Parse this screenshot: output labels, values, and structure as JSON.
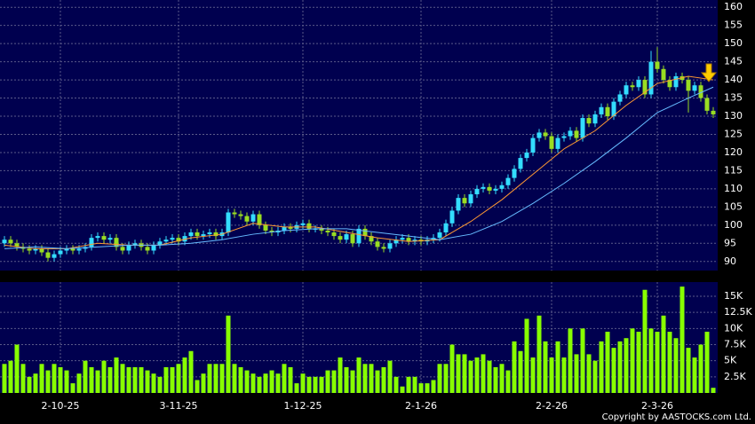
{
  "chart_data": [
    {
      "type": "candlestick",
      "up_color": "#33ddff",
      "down_color": "#99dd22",
      "grid": true,
      "ylim": [
        87.5,
        162
      ],
      "yticks": [
        90,
        95,
        100,
        105,
        110,
        115,
        120,
        125,
        130,
        135,
        140,
        145,
        150,
        155,
        160
      ],
      "open": [
        95,
        96,
        95,
        94,
        93.5,
        93,
        93.5,
        92.5,
        91,
        92,
        93,
        93.5,
        93,
        93.5,
        94,
        96.5,
        97,
        96,
        96.5,
        94,
        93,
        94.5,
        95,
        94,
        93,
        94.5,
        95.5,
        96,
        96.5,
        95.5,
        97,
        98,
        97,
        97.5,
        98,
        97,
        98,
        103.5,
        103,
        102.5,
        101,
        103,
        100,
        98.5,
        98,
        98.5,
        99.5,
        99,
        100,
        100.5,
        99,
        99,
        98.5,
        98,
        97,
        96,
        97.5,
        95,
        99,
        97,
        95.5,
        94,
        93.5,
        95,
        96,
        96.5,
        95.5,
        96,
        95.5,
        96,
        96.5,
        98,
        100.5,
        104,
        107.5,
        106,
        108.5,
        110,
        110.5,
        109.5,
        110,
        111,
        113,
        115.5,
        118.5,
        120,
        124,
        125.5,
        124.5,
        121,
        124,
        124.5,
        126,
        124,
        129.5,
        128,
        130.5,
        132.5,
        130,
        134,
        136,
        138.5,
        138,
        140,
        136,
        145,
        143,
        140,
        138,
        141,
        140,
        137,
        138.5,
        135,
        131.5
      ],
      "high": [
        97,
        97,
        96,
        95,
        94.5,
        94.5,
        94.5,
        93.5,
        93,
        94,
        94.5,
        94.5,
        94.5,
        95,
        97.5,
        98,
        98,
        97.5,
        97.5,
        95,
        95.5,
        96,
        96,
        95,
        95.5,
        96.5,
        97,
        97.5,
        97.5,
        98,
        99,
        99,
        98.5,
        99,
        99,
        99,
        104.5,
        104.5,
        104,
        103.5,
        104,
        104,
        101,
        99.5,
        99.5,
        100.5,
        100.5,
        101,
        101.5,
        101.5,
        100,
        100,
        99.5,
        99,
        98,
        98.5,
        98.5,
        100,
        100,
        98,
        96.5,
        95,
        96,
        97,
        97.5,
        97.5,
        97,
        97,
        97,
        97.5,
        99,
        101.5,
        105,
        108.5,
        108.5,
        109.5,
        111,
        111.5,
        111.5,
        111,
        112,
        114,
        116.5,
        119.5,
        121,
        125,
        126.5,
        126.5,
        125.5,
        125,
        125.5,
        127,
        127,
        130.5,
        130.5,
        131.5,
        133.5,
        133.5,
        135,
        137,
        139.5,
        139.5,
        141,
        141,
        148,
        149,
        144,
        141,
        142,
        142,
        141,
        139.5,
        139.5,
        136,
        132.5
      ],
      "low": [
        94,
        94,
        93,
        92.5,
        92,
        92,
        91.5,
        90,
        90,
        91,
        92,
        92,
        92,
        92.5,
        93,
        95.5,
        95,
        95,
        93,
        92,
        92,
        93.5,
        93,
        92,
        92,
        93.5,
        94.5,
        95,
        94.5,
        94.5,
        96,
        96,
        96,
        96.5,
        96,
        96,
        97,
        102,
        101.5,
        100,
        100,
        99,
        97.5,
        97,
        97,
        97.5,
        98,
        98,
        99,
        98,
        98,
        97.5,
        97,
        96,
        95,
        95,
        94,
        94,
        96,
        94.5,
        93,
        92.5,
        92.5,
        94,
        95,
        94.5,
        94.5,
        94.5,
        94.5,
        95,
        95.5,
        97,
        99.5,
        103,
        105,
        105,
        107.5,
        109,
        108.5,
        108.5,
        109,
        110,
        112,
        114.5,
        117.5,
        119,
        123,
        123.5,
        120,
        120,
        123,
        123.5,
        123,
        123,
        127,
        127,
        129.5,
        129,
        129,
        133,
        135,
        137,
        137,
        135,
        135,
        142,
        139,
        137,
        137,
        139,
        131,
        136,
        134,
        130.5,
        129.5
      ],
      "close": [
        96,
        95,
        94,
        93.5,
        93,
        93.5,
        92.5,
        91,
        92,
        93,
        93.5,
        93,
        93.5,
        94,
        96.5,
        97,
        96,
        96.5,
        94,
        93,
        94.5,
        95,
        94,
        93,
        94.5,
        95.5,
        96,
        96.5,
        95.5,
        97,
        98,
        97,
        97.5,
        98,
        97,
        98,
        103.5,
        103,
        102.5,
        101,
        103,
        100,
        98.5,
        98,
        98.5,
        99.5,
        99,
        100,
        100.5,
        99,
        99,
        98.5,
        98,
        97,
        96,
        97.5,
        95,
        99,
        97,
        95.5,
        94,
        93.5,
        95,
        96,
        96.5,
        95.5,
        96,
        95.5,
        96,
        96.5,
        98,
        100.5,
        104,
        107.5,
        106,
        108.5,
        110,
        110.5,
        109.5,
        110,
        111,
        113,
        115.5,
        118.5,
        120,
        124,
        125.5,
        124.5,
        121,
        124,
        124.5,
        126,
        124,
        129.5,
        128,
        130.5,
        132.5,
        130,
        134,
        136,
        138.5,
        138,
        140,
        136,
        145,
        143,
        140,
        138,
        141,
        140,
        137,
        138.5,
        135,
        131.5,
        130.5
      ],
      "lines": [
        {
          "color": "#ff9933",
          "x": [
            0,
            5,
            10,
            15,
            20,
            25,
            30,
            35,
            40,
            45,
            50,
            55,
            60,
            65,
            70,
            75,
            80,
            85,
            90,
            95,
            100,
            105,
            110,
            114
          ],
          "values": [
            94.5,
            93.5,
            93.5,
            95,
            94.5,
            94.5,
            96.5,
            97.5,
            100.5,
            99.5,
            99.5,
            98,
            96.5,
            95.5,
            96,
            101,
            107,
            114,
            121,
            126,
            133,
            139,
            141,
            140
          ]
        },
        {
          "color": "#66bbff",
          "x": [
            0,
            5,
            10,
            15,
            20,
            25,
            30,
            35,
            40,
            45,
            50,
            55,
            60,
            65,
            70,
            75,
            80,
            85,
            90,
            95,
            100,
            105,
            110,
            114
          ],
          "values": [
            93.5,
            94,
            93.5,
            94,
            94.5,
            94.5,
            95,
            96,
            97.5,
            98.5,
            99,
            99,
            98,
            97,
            96,
            97.5,
            101,
            106,
            111.5,
            117.5,
            124,
            131,
            135,
            138
          ]
        }
      ]
    },
    {
      "type": "bar",
      "color": "#88ff00",
      "grid": true,
      "ylim": [
        0,
        17200
      ],
      "yticks": [
        {
          "value": 2500,
          "label": "2.5K"
        },
        {
          "value": 5000,
          "label": "5K"
        },
        {
          "value": 7500,
          "label": "7.5K"
        },
        {
          "value": 10000,
          "label": "10K"
        },
        {
          "value": 12500,
          "label": "12.5K"
        },
        {
          "value": 15000,
          "label": "15K"
        }
      ],
      "categories": [
        null,
        null,
        null,
        null,
        null,
        null,
        null,
        null,
        null,
        "2-10-25",
        null,
        null,
        null,
        null,
        null,
        null,
        null,
        null,
        null,
        null,
        null,
        null,
        null,
        null,
        null,
        null,
        null,
        null,
        "3-11-25",
        null,
        null,
        null,
        null,
        null,
        null,
        null,
        null,
        null,
        null,
        null,
        null,
        null,
        null,
        null,
        null,
        null,
        null,
        null,
        "1-12-25",
        null,
        null,
        null,
        null,
        null,
        null,
        null,
        null,
        null,
        null,
        null,
        null,
        null,
        null,
        null,
        null,
        null,
        null,
        "2-1-26",
        null,
        null,
        null,
        null,
        null,
        null,
        null,
        null,
        null,
        null,
        null,
        null,
        null,
        null,
        null,
        null,
        null,
        null,
        null,
        null,
        "2-2-26",
        null,
        null,
        null,
        null,
        null,
        null,
        null,
        null,
        null,
        null,
        null,
        null,
        null,
        null,
        null,
        null,
        "2-3-26",
        null,
        null,
        null,
        null,
        null,
        null,
        null,
        null,
        null
      ],
      "values": [
        4500,
        5000,
        7500,
        4500,
        2500,
        3000,
        4500,
        3500,
        4500,
        4000,
        3500,
        1500,
        3000,
        5000,
        4000,
        3500,
        5000,
        4000,
        5500,
        4500,
        4000,
        4000,
        4000,
        3500,
        3000,
        2500,
        4000,
        4000,
        4500,
        5500,
        6500,
        2000,
        3000,
        4500,
        4500,
        4500,
        12000,
        4500,
        4000,
        3500,
        3000,
        2500,
        3000,
        3500,
        3000,
        4500,
        4000,
        1500,
        3000,
        2500,
        2500,
        2500,
        3500,
        3500,
        5500,
        4000,
        3500,
        5500,
        4500,
        4500,
        3500,
        4000,
        5000,
        2500,
        1000,
        2500,
        2500,
        1500,
        1500,
        2000,
        4500,
        4500,
        7500,
        6000,
        6000,
        5000,
        5500,
        6000,
        5000,
        4000,
        4500,
        3500,
        8000,
        6500,
        11500,
        5500,
        12000,
        8000,
        5500,
        8000,
        5500,
        10000,
        6000,
        10000,
        6000,
        5000,
        8000,
        9500,
        7000,
        8000,
        8500,
        10000,
        9500,
        16000,
        10000,
        9500,
        12000,
        9500,
        8500,
        16500,
        7000,
        5500,
        7500,
        9500,
        800
      ]
    }
  ],
  "footer": "Copyright by AASTOCKS.com Ltd."
}
